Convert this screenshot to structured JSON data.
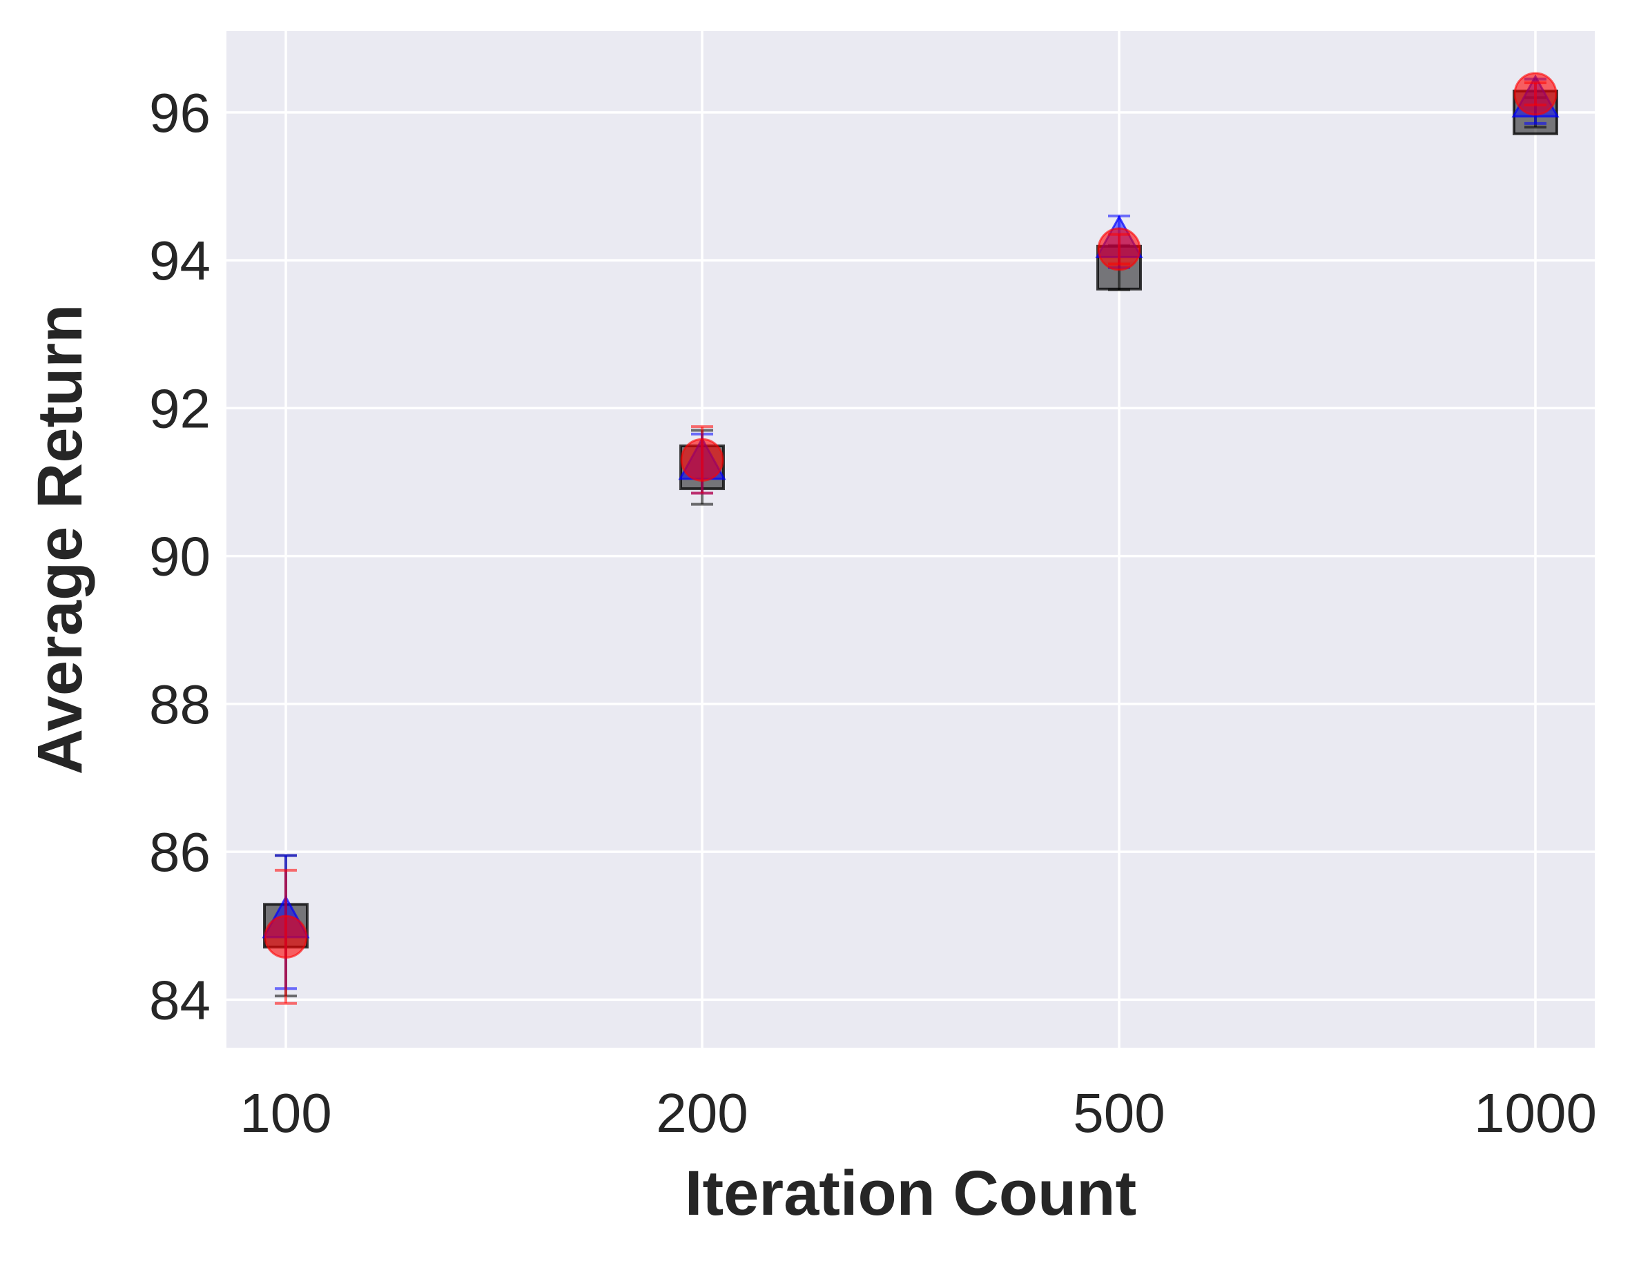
{
  "chart_data": {
    "type": "scatter",
    "title": "",
    "xlabel": "Iteration Count",
    "ylabel": "Average Return",
    "categories": [
      "100",
      "200",
      "500",
      "1000"
    ],
    "ylim": [
      83.35,
      97.1
    ],
    "yticks": [
      84,
      86,
      88,
      90,
      92,
      94,
      96
    ],
    "grid": true,
    "legend": "none",
    "colors": {
      "background": "#eaeaf2",
      "grid": "#ffffff",
      "text": "#262626"
    },
    "series": [
      {
        "marker": "square",
        "color": "#000000",
        "values": [
          85.0,
          91.2,
          93.9,
          96.0
        ],
        "errors": [
          0.95,
          0.5,
          0.3,
          0.2
        ]
      },
      {
        "marker": "triangle",
        "color": "#0000ff",
        "values": [
          85.05,
          91.25,
          94.25,
          96.15
        ],
        "errors": [
          0.9,
          0.4,
          0.35,
          0.3
        ]
      },
      {
        "marker": "circle",
        "color": "#ff0000",
        "values": [
          84.85,
          91.3,
          94.15,
          96.25
        ],
        "errors": [
          0.9,
          0.45,
          0.2,
          0.15
        ]
      }
    ]
  }
}
